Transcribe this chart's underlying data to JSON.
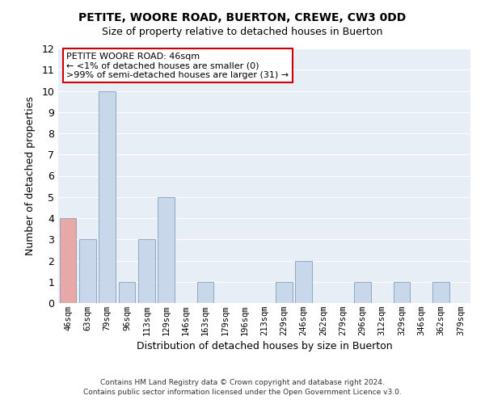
{
  "title": "PETITE, WOORE ROAD, BUERTON, CREWE, CW3 0DD",
  "subtitle": "Size of property relative to detached houses in Buerton",
  "xlabel": "Distribution of detached houses by size in Buerton",
  "ylabel": "Number of detached properties",
  "categories": [
    "46sqm",
    "63sqm",
    "79sqm",
    "96sqm",
    "113sqm",
    "129sqm",
    "146sqm",
    "163sqm",
    "179sqm",
    "196sqm",
    "213sqm",
    "229sqm",
    "246sqm",
    "262sqm",
    "279sqm",
    "296sqm",
    "312sqm",
    "329sqm",
    "346sqm",
    "362sqm",
    "379sqm"
  ],
  "values": [
    4,
    3,
    10,
    1,
    3,
    5,
    0,
    1,
    0,
    0,
    0,
    1,
    2,
    0,
    0,
    1,
    0,
    1,
    0,
    1,
    0
  ],
  "highlight_index": 0,
  "bar_color_normal": "#c8d8ea",
  "bar_color_highlight": "#e8a8a8",
  "bar_edge_color": "#7090b0",
  "ylim": [
    0,
    12
  ],
  "yticks": [
    0,
    1,
    2,
    3,
    4,
    5,
    6,
    7,
    8,
    9,
    10,
    11,
    12
  ],
  "annotation_title": "PETITE WOORE ROAD: 46sqm",
  "annotation_line1": "← <1% of detached houses are smaller (0)",
  "annotation_line2": ">99% of semi-detached houses are larger (31) →",
  "annotation_box_facecolor": "#ffffff",
  "annotation_box_edgecolor": "#cc0000",
  "plot_bg_color": "#e8eef5",
  "grid_color": "#ffffff",
  "footer1": "Contains HM Land Registry data © Crown copyright and database right 2024.",
  "footer2": "Contains public sector information licensed under the Open Government Licence v3.0."
}
